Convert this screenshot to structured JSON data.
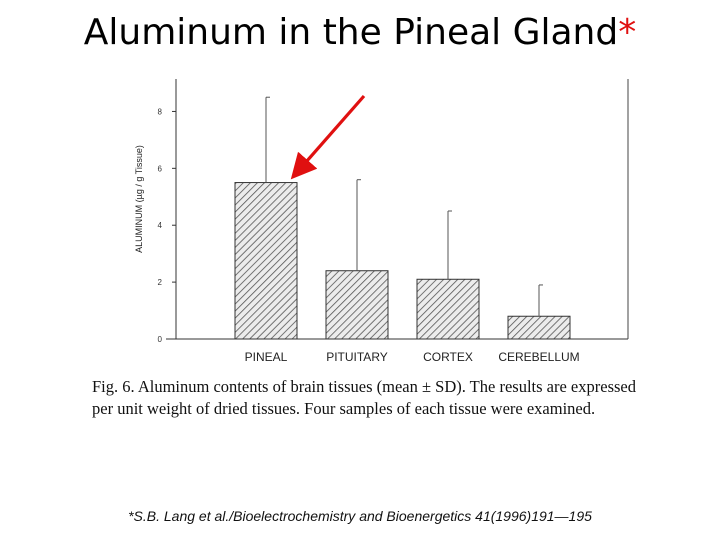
{
  "slide": {
    "title": "Aluminum in the Pineal Gland",
    "title_asterisk": "*",
    "caption": "Fig. 6. Aluminum contents of brain tissues (mean ± SD). The results are expressed per unit weight of dried tissues. Four samples of each tissue were examined.",
    "citation": "*S.B. Lang et al./Bioelectrochemistry and Bioenergetics 41(1996)191—195"
  },
  "colors": {
    "asterisk": "#e01010",
    "arrow": "#e01010",
    "bar_hatch": "#555555"
  },
  "chart_data": {
    "type": "bar",
    "title": "",
    "xlabel": "",
    "ylabel": "ALUMINUM (µg / g Tissue)",
    "categories": [
      "PINEAL",
      "PITUITARY",
      "CORTEX",
      "CEREBELLUM"
    ],
    "values": [
      5.5,
      2.4,
      2.1,
      0.8
    ],
    "error_upper": [
      8.5,
      5.6,
      4.5,
      1.9
    ],
    "yticks": [
      "0",
      "2",
      "4",
      "6",
      "8"
    ],
    "ylim": [
      0,
      9
    ],
    "highlight": "PINEAL",
    "grid": false
  }
}
